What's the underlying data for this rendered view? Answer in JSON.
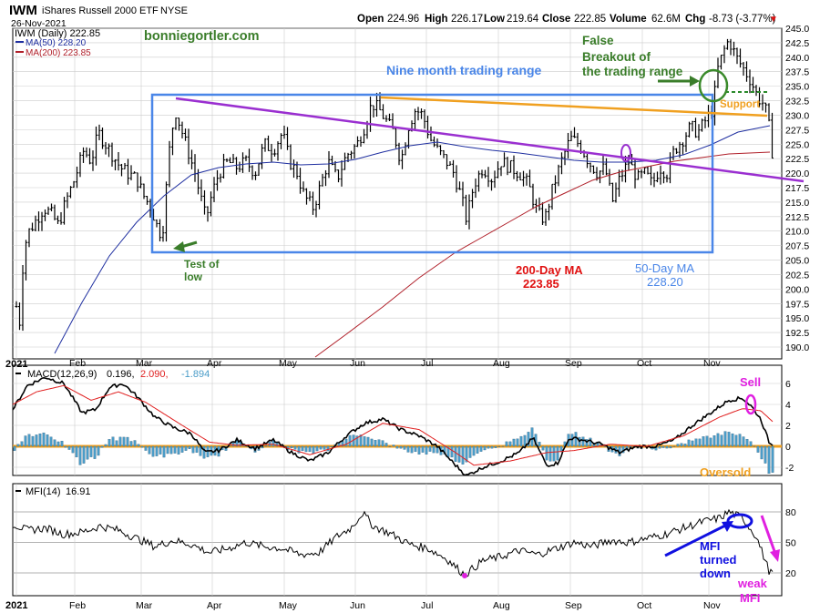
{
  "header": {
    "symbol": "IWM",
    "name": "iShares Russell 2000 ETF",
    "exchange": "NYSE",
    "date": "26-Nov-2021",
    "open_label": "Open",
    "open": "224.96",
    "high_label": "High",
    "high": "226.17",
    "low_label": "Low",
    "low": "219.64",
    "close_label": "Close",
    "close": "222.85",
    "volume_label": "Volume",
    "volume": "62.6M",
    "change_label": "Chg",
    "change": "-8.73 (-3.77%)",
    "change_arrow": "▼"
  },
  "legend": {
    "main": "IWM (Daily) 222.85",
    "ma50": "MA(50) 228.20",
    "ma200": "MA(200) 223.85"
  },
  "watermark": "bonniegortler.com",
  "annotations": {
    "range": "Nine month trading range",
    "false1": "False",
    "false2": "Breakout of",
    "false3": "the trading range",
    "support": "Support",
    "test1": "Test of",
    "test2": "low",
    "ma200_1": "200-Day MA",
    "ma200_2": "223.85",
    "ma50_1": "50-Day MA",
    "ma50_2": "228.20",
    "sell": "Sell",
    "oversold": "Oversold",
    "mfi1": "MFI",
    "mfi2": "turned",
    "mfi3": "down",
    "weak1": "weak",
    "weak2": "MFI"
  },
  "macd": {
    "label": "MACD(12,26,9)",
    "v1": "0.196,",
    "v2": "2.090,",
    "v3": "-1.894"
  },
  "mfi": {
    "label": "MFI(14)",
    "value": "16.91"
  },
  "colors": {
    "ma50": "#1f2fa0",
    "ma200": "#b0202a",
    "box": "#4a86e8",
    "purple": "#9a2fd0",
    "orange": "#f0a020",
    "green": "#3a7d2a",
    "red": "#e01010",
    "magenta": "#e020e0",
    "blue": "#1010e0",
    "hist": "#4a9cc8"
  },
  "chart_data": {
    "type": "line",
    "title": "IWM iShares Russell 2000 ETF NYSE",
    "date_range": [
      "2021-01-04",
      "2021-11-26"
    ],
    "x_months": [
      "2021",
      "Feb",
      "Mar",
      "Apr",
      "May",
      "Jun",
      "Jul",
      "Aug",
      "Sep",
      "Oct",
      "Nov"
    ],
    "price_ylim": [
      190.0,
      245.0
    ],
    "price_ticks": [
      190.0,
      192.5,
      195.0,
      197.5,
      200.0,
      202.5,
      205.0,
      207.5,
      210.0,
      212.5,
      215.0,
      217.5,
      220.0,
      222.5,
      225.0,
      227.5,
      230.0,
      232.5,
      235.0,
      237.5,
      240.0,
      242.5,
      245.0
    ],
    "price_close_monthly": [
      {
        "x": "2021-01",
        "close": 211
      },
      {
        "x": "2021-02",
        "close": 222
      },
      {
        "x": "2021-03",
        "close": 221
      },
      {
        "x": "2021-04",
        "close": 225
      },
      {
        "x": "2021-05",
        "close": 222
      },
      {
        "x": "2021-06",
        "close": 229
      },
      {
        "x": "2021-07",
        "close": 221
      },
      {
        "x": "2021-08",
        "close": 223
      },
      {
        "x": "2021-09",
        "close": 220
      },
      {
        "x": "2021-10",
        "close": 228
      },
      {
        "x": "2021-11",
        "close": 222.85
      }
    ],
    "ma50_end": 228.2,
    "ma200_end": 223.85,
    "trading_range_box": {
      "top": 233.3,
      "bottom": 206.3,
      "start": "2021-03-01",
      "end": "2021-10-31"
    },
    "macd": {
      "values": [
        0.196,
        2.09,
        -1.894
      ],
      "ylim": [
        -3,
        7
      ],
      "ticks": [
        -2,
        0,
        2,
        4,
        6
      ]
    },
    "mfi": {
      "value": 16.91,
      "ylim": [
        10,
        90
      ],
      "ticks": [
        20,
        50,
        80
      ]
    },
    "grid": true,
    "legend_position": "top-left"
  }
}
